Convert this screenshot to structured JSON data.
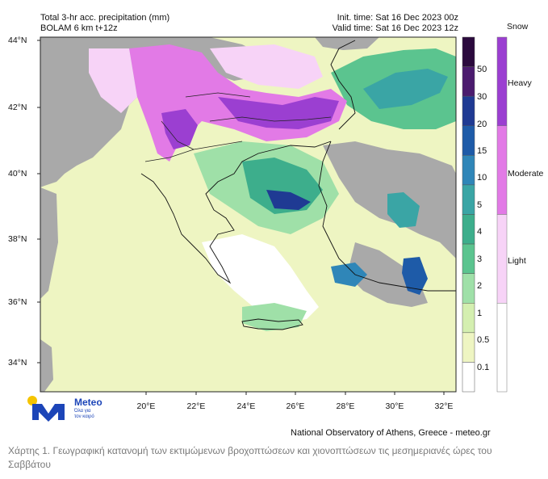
{
  "header": {
    "title": "Total 3-hr acc. precipitation (mm)",
    "model": "BOLAM 6 km t+12z",
    "init_time": "Init. time: Sat 16 Dec 2023 00z",
    "valid_time": "Valid time: Sat 16 Dec 2023 12z"
  },
  "axes": {
    "lat_labels": [
      "44°N",
      "42°N",
      "40°N",
      "38°N",
      "36°N",
      "34°N"
    ],
    "lon_labels": [
      "20°E",
      "22°E",
      "24°E",
      "26°E",
      "28°E",
      "30°E",
      "32°E"
    ]
  },
  "rain_scale": {
    "labels": [
      "50",
      "30",
      "20",
      "15",
      "10",
      "5",
      "4",
      "3",
      "2",
      "1",
      "0.5",
      "0.1"
    ],
    "colors": [
      "#2b0a3d",
      "#4b1b6e",
      "#1f3a93",
      "#1e5ba8",
      "#2f86b8",
      "#3aa5a5",
      "#3dae8c",
      "#5bc48f",
      "#9fe0a8",
      "#d4efb0",
      "#eef5c2",
      "#ffffff"
    ]
  },
  "snow_scale": {
    "title": "Snow",
    "labels": [
      "Heavy",
      "Moderate",
      "Light"
    ],
    "colors": [
      "#9b3fd1",
      "#e27ae6",
      "#f7d3f7",
      "#ffffff"
    ]
  },
  "branding": {
    "logo_word": "Meteo",
    "logo_tagline": "Όλα για\nτον καιρό",
    "credit": "National Observatory of Athens, Greece - meteo.gr"
  },
  "caption": "Χάρτης 1. Γεωγραφική κατανομή των εκτιμώμενων βροχοπτώσεων και χιονοπτώσεων τις μεσημεριανές ώρες του Σαββάτου"
}
